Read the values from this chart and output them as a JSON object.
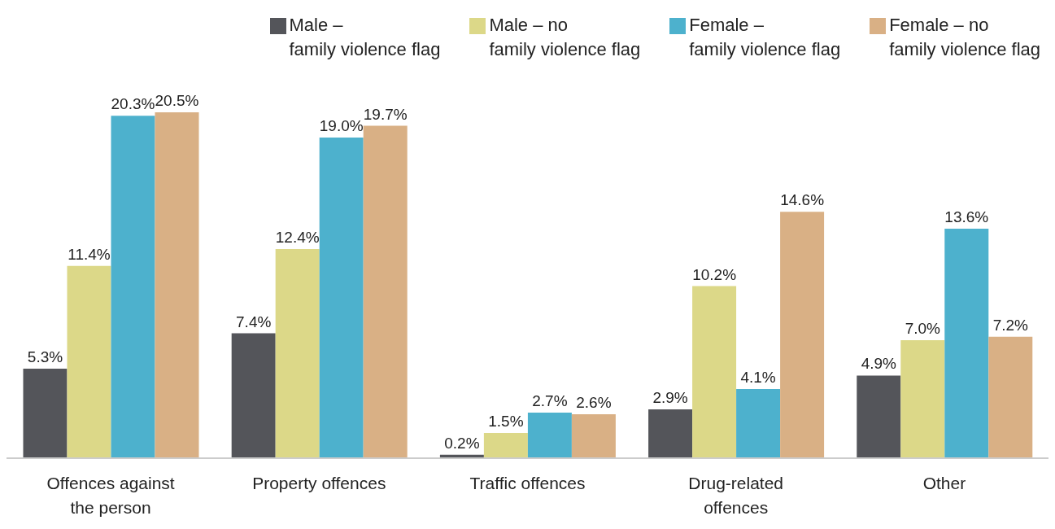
{
  "chart_data": {
    "type": "bar",
    "categories": [
      "Offences against the person",
      "Property offences",
      "Traffic offences",
      "Drug-related offences",
      "Other"
    ],
    "series": [
      {
        "name": "Male –\nfamily violence flag",
        "color": "#54555a",
        "values": [
          5.3,
          7.4,
          0.2,
          2.9,
          4.9
        ],
        "value_labels": [
          "5.3%",
          "7.4%",
          "0.2%",
          "2.9%",
          "4.9%"
        ]
      },
      {
        "name": "Male – no\nfamily violence flag",
        "color": "#dcd888",
        "values": [
          11.4,
          12.4,
          1.5,
          10.2,
          7.0
        ],
        "value_labels": [
          "11.4%",
          "12.4%",
          "1.5%",
          "10.2%",
          "7.0%"
        ]
      },
      {
        "name": "Female –\nfamily violence flag",
        "color": "#4db1cd",
        "values": [
          20.3,
          19.0,
          2.7,
          4.1,
          13.6
        ],
        "value_labels": [
          "20.3%",
          "19.0%",
          "2.7%",
          "4.1%",
          "13.6%"
        ]
      },
      {
        "name": "Female – no\nfamily violence flag",
        "color": "#d9b085",
        "values": [
          20.5,
          19.7,
          2.6,
          14.6,
          7.2
        ],
        "value_labels": [
          "20.5%",
          "19.7%",
          "2.6%",
          "14.6%",
          "7.2%"
        ]
      }
    ],
    "legend": "top",
    "grid": false
  }
}
